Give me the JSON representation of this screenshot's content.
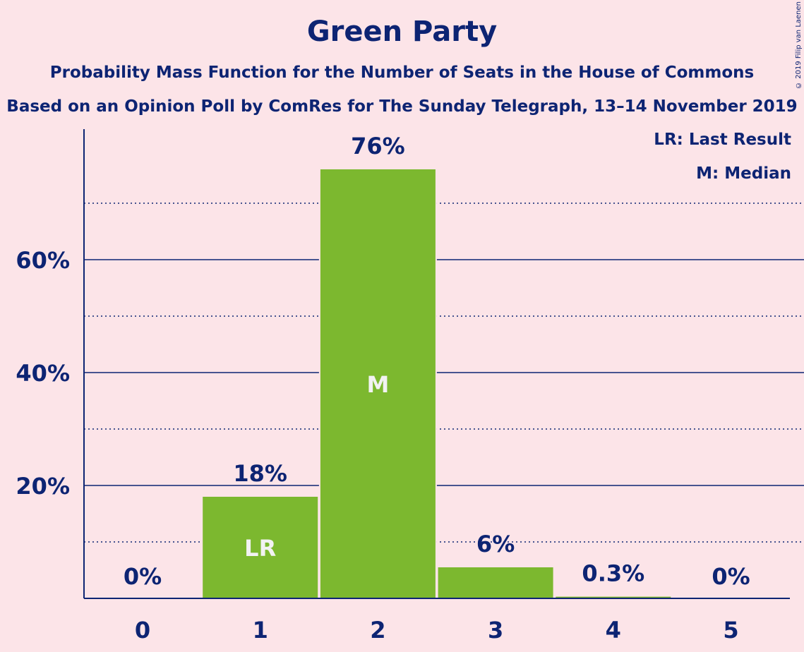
{
  "header": {
    "title": "Green Party",
    "subtitle": "Probability Mass Function for the Number of Seats in the House of Commons",
    "poll_line": "Based on an Opinion Poll by ComRes for The Sunday Telegraph, 13–14 November 2019"
  },
  "legend": {
    "last_result": "LR: Last Result",
    "median": "M: Median"
  },
  "copyright": "© 2019 Filip van Laenen",
  "colors": {
    "background": "#fce4e8",
    "bar": "#7cb82f",
    "text": "#0d2473"
  },
  "chart_data": {
    "type": "bar",
    "categories": [
      "0",
      "1",
      "2",
      "3",
      "4",
      "5"
    ],
    "values": [
      0,
      18,
      76,
      5.5,
      0.3,
      0
    ],
    "value_labels": [
      "0%",
      "18%",
      "76%",
      "6%",
      "0.3%",
      "0%"
    ],
    "bar_markers": [
      "",
      "LR",
      "M",
      "",
      "",
      ""
    ],
    "ylim": [
      0,
      83
    ],
    "yticks": [
      20,
      40,
      60
    ],
    "ytick_labels": [
      "20%",
      "40%",
      "60%"
    ],
    "minor_gridlines": [
      10,
      30,
      50,
      70
    ],
    "grid": true
  }
}
